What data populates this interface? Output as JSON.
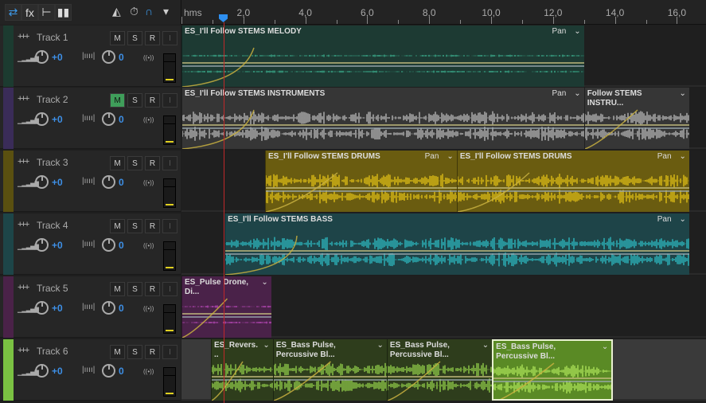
{
  "toolbar": {
    "buttons": [
      {
        "name": "waveform-multitrack-icon",
        "glyph": "⇄",
        "active": true
      },
      {
        "name": "fx-icon",
        "glyph": "fx"
      },
      {
        "name": "send-icon",
        "glyph": "⊢"
      },
      {
        "name": "eq-icon",
        "glyph": "▮▮"
      }
    ],
    "tools": [
      {
        "name": "metronome-icon",
        "glyph": "◭"
      },
      {
        "name": "time-stretch-icon",
        "glyph": "⏱"
      },
      {
        "name": "snap-magnet-icon",
        "glyph": "∩",
        "active": true
      },
      {
        "name": "marker-pin-icon",
        "glyph": "▾"
      }
    ]
  },
  "ruler": {
    "unit": "hms",
    "labels": [
      "2,0",
      "4,0",
      "6,0",
      "8,0",
      "10,0",
      "12,0",
      "14,0",
      "16,0"
    ],
    "playhead_seconds": 1.39
  },
  "tracks": [
    {
      "name": "Track 1",
      "volume": "+0",
      "pan": "0",
      "color": "#1c3b30",
      "mute": false,
      "clips": [
        {
          "title": "ES_I'll Follow STEMS MELODY",
          "start": 0,
          "end": 13.0,
          "bg": "#1d3a33",
          "wave": "#3fbf9b",
          "pan": "Pan"
        }
      ]
    },
    {
      "name": "Track 2",
      "volume": "+0",
      "pan": "0",
      "color": "#3a2c58",
      "mute": true,
      "clips": [
        {
          "title": "ES_I'll Follow STEMS INSTRUMENTS",
          "start": 0,
          "end": 13.0,
          "bg": "#363636",
          "wave": "#c8c8c8",
          "pan": "Pan"
        },
        {
          "title": "Follow STEMS INSTRU...",
          "start": 13.0,
          "end": 16.4,
          "bg": "#363636",
          "wave": "#c8c8c8",
          "pan": ""
        }
      ]
    },
    {
      "name": "Track 3",
      "volume": "+0",
      "pan": "0",
      "color": "#5a5010",
      "mute": false,
      "clips": [
        {
          "title": "ES_I'll Follow STEMS DRUMS",
          "start": 2.7,
          "end": 8.89,
          "bg": "#6a5c10",
          "wave": "#f0cc18",
          "pan": "Pan"
        },
        {
          "title": "ES_I'll Follow STEMS DRUMS",
          "start": 8.89,
          "end": 16.4,
          "bg": "#6a5c10",
          "wave": "#f0cc18",
          "pan": "Pan"
        }
      ]
    },
    {
      "name": "Track 4",
      "volume": "+0",
      "pan": "0",
      "color": "#1d4548",
      "mute": false,
      "clips": [
        {
          "title": "ES_I'll Follow STEMS BASS",
          "start": 1.39,
          "end": 16.4,
          "bg": "#1e4448",
          "wave": "#2fc8d0",
          "pan": "Pan"
        }
      ]
    },
    {
      "name": "Track 5",
      "volume": "+0",
      "pan": "0",
      "color": "#4a2248",
      "mute": false,
      "clips": [
        {
          "title": "ES_Pulse Drone, Di...",
          "start": 0,
          "end": 2.9,
          "bg": "#4a2249",
          "wave": "#d050d0",
          "pan": ""
        }
      ]
    },
    {
      "name": "Track 6",
      "volume": "+0",
      "pan": "0",
      "color": "#7ac142",
      "mute": false,
      "clips": [
        {
          "title": "ES_Revers...",
          "start": 0.95,
          "end": 2.95,
          "bg": "#2e3d1c",
          "wave": "#9ee050",
          "pan": ""
        },
        {
          "title": "ES_Bass Pulse, Percussive Bl...",
          "start": 2.95,
          "end": 6.63,
          "bg": "#2e3d1c",
          "wave": "#9ee050",
          "pan": ""
        },
        {
          "title": "ES_Bass Pulse, Percussive Bl...",
          "start": 6.63,
          "end": 10.03,
          "bg": "#2e3d1c",
          "wave": "#9ee050",
          "pan": ""
        },
        {
          "title": "ES_Bass Pulse, Percussive Bl...",
          "start": 10.03,
          "end": 13.94,
          "bg": "#5a8a25",
          "wave": "#b8f060",
          "pan": "",
          "selected": true
        }
      ]
    }
  ],
  "labels": {
    "mute": "M",
    "solo": "S",
    "record": "R",
    "input": "I"
  }
}
